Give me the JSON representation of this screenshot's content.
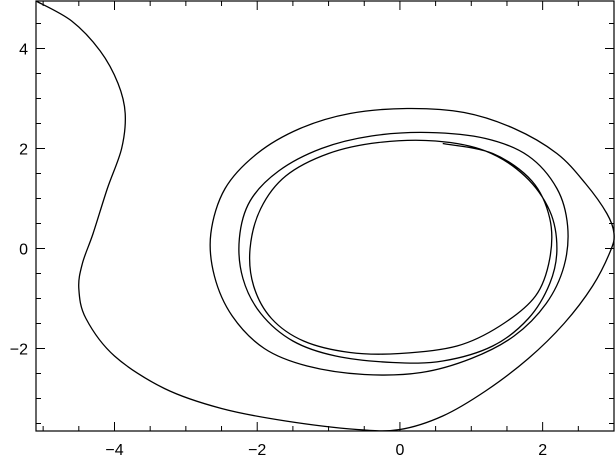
{
  "chart_data": {
    "type": "line",
    "title": "",
    "xlabel": "",
    "ylabel": "",
    "xlim": [
      -5.1,
      3.0
    ],
    "ylim": [
      -3.65,
      4.95
    ],
    "grid": false,
    "x_ticks": [
      -4,
      -2,
      0,
      2
    ],
    "x_tick_labels": [
      "−4",
      "−2",
      "0",
      "2"
    ],
    "y_ticks": [
      -2,
      0,
      2,
      4
    ],
    "y_tick_labels": [
      "−2",
      "0",
      "2",
      "4"
    ],
    "series": [
      {
        "x": [
          -5.1,
          -4.6,
          -4.2,
          -3.95,
          -3.85,
          -3.9,
          -4.1,
          -4.3,
          -4.45,
          -4.5,
          -4.4,
          -4.0,
          -3.3,
          -2.5,
          -1.6,
          -0.6,
          0.0,
          0.6,
          1.2,
          1.8,
          2.3,
          2.7,
          2.95,
          3.0,
          2.9,
          2.6,
          2.2,
          1.6,
          0.9,
          0.1,
          -0.7,
          -1.4,
          -2.0,
          -2.45,
          -2.65,
          -2.6,
          -2.35,
          -1.9,
          -1.3,
          -0.5,
          0.3,
          1.0,
          1.6,
          2.05,
          2.3,
          2.35,
          2.2,
          1.8,
          1.2,
          0.4,
          -0.4,
          -1.1,
          -1.7,
          -2.1,
          -2.25,
          -2.2,
          -1.95,
          -1.5,
          -0.9,
          -0.1,
          0.6,
          1.3,
          1.8,
          2.1,
          2.2,
          2.1,
          1.75,
          1.2,
          0.5,
          -0.3,
          -1.0,
          -1.6,
          -1.95,
          -2.1,
          -2.05,
          -1.8,
          -1.35,
          -0.7,
          0.0,
          0.8,
          1.4,
          1.9,
          2.1,
          2.1,
          1.85,
          1.3,
          0.6
        ],
        "y": [
          4.95,
          4.55,
          3.95,
          3.3,
          2.7,
          2.0,
          1.2,
          0.3,
          -0.3,
          -0.8,
          -1.4,
          -2.15,
          -2.8,
          -3.2,
          -3.45,
          -3.62,
          -3.62,
          -3.35,
          -2.85,
          -2.2,
          -1.5,
          -0.75,
          -0.05,
          0.3,
          0.7,
          1.3,
          1.9,
          2.4,
          2.72,
          2.8,
          2.7,
          2.4,
          1.9,
          1.2,
          0.3,
          -0.55,
          -1.35,
          -2.0,
          -2.35,
          -2.52,
          -2.48,
          -2.2,
          -1.75,
          -1.1,
          -0.35,
          0.45,
          1.2,
          1.85,
          2.2,
          2.32,
          2.25,
          2.0,
          1.55,
          0.95,
          0.2,
          -0.6,
          -1.3,
          -1.85,
          -2.15,
          -2.28,
          -2.25,
          -1.95,
          -1.4,
          -0.7,
          0.0,
          0.75,
          1.45,
          1.95,
          2.15,
          2.12,
          1.9,
          1.45,
          0.8,
          0.0,
          -0.75,
          -1.4,
          -1.85,
          -2.08,
          -2.1,
          -1.95,
          -1.55,
          -0.95,
          -0.2,
          0.6,
          1.35,
          1.9,
          2.1
        ]
      }
    ]
  }
}
